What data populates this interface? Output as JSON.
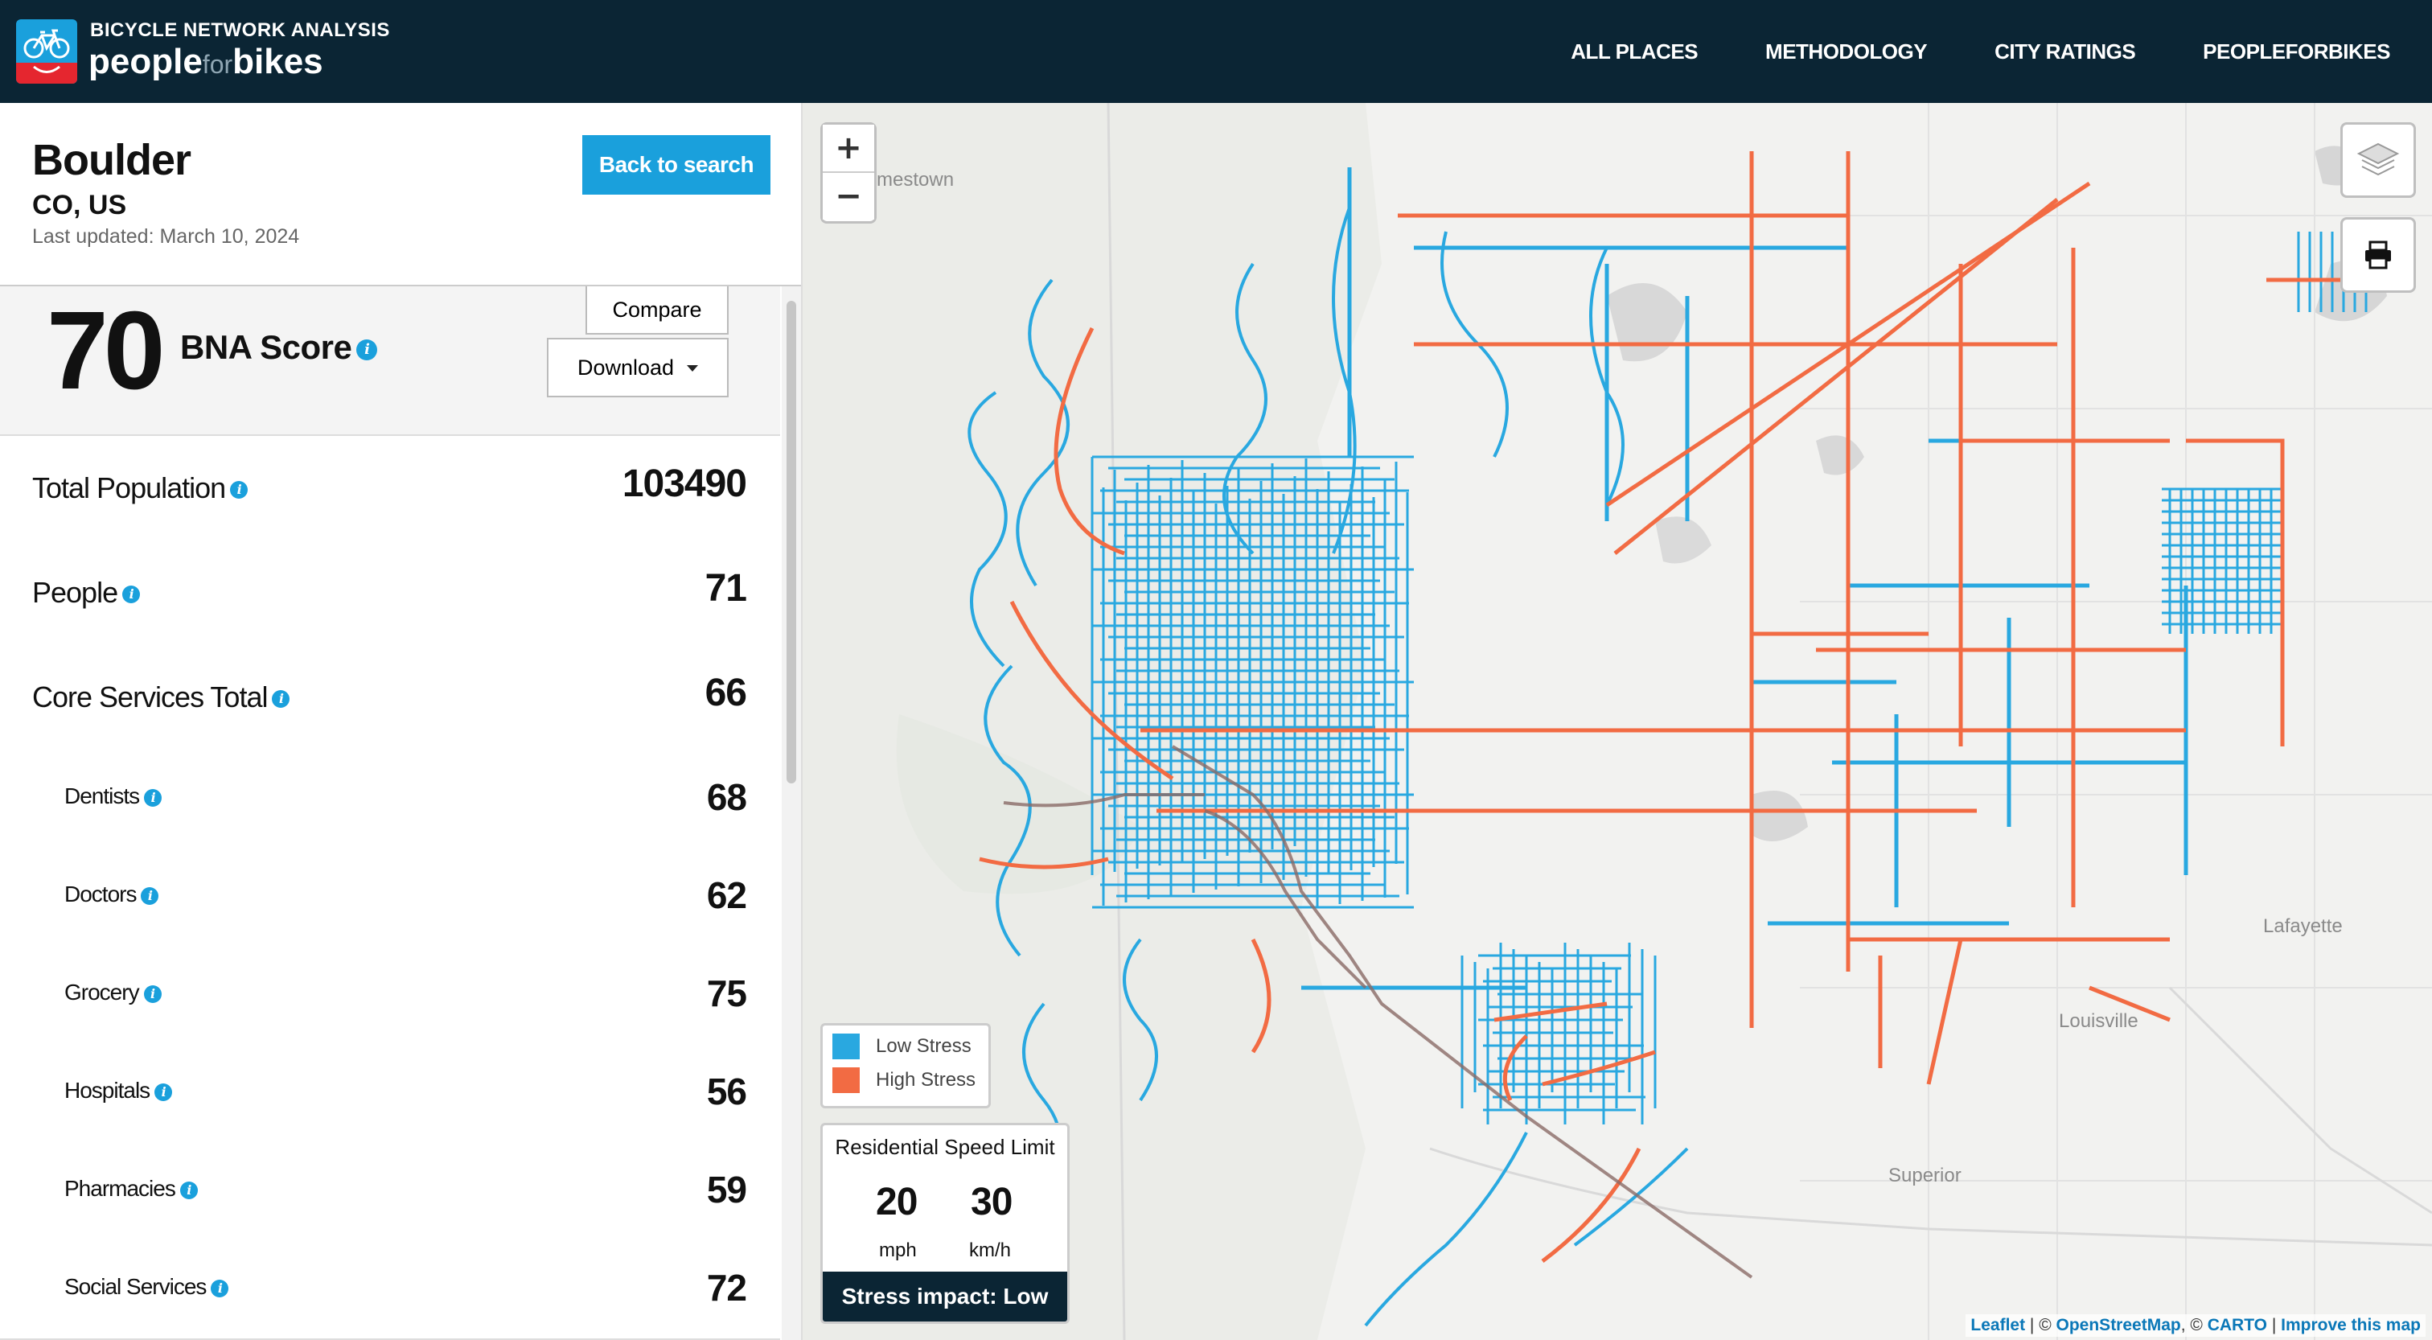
{
  "header": {
    "brand_top": "BICYCLE NETWORK ANALYSIS",
    "brand_people": "people",
    "brand_for": "for",
    "brand_bikes": "bikes",
    "nav": [
      "ALL PLACES",
      "METHODOLOGY",
      "CITY RATINGS",
      "PEOPLEFORBIKES"
    ]
  },
  "city": {
    "name": "Boulder",
    "region": "CO, US",
    "updated_label": "Last updated:",
    "updated_date": "March 10, 2024",
    "back_button": "Back to search"
  },
  "score": {
    "value": "70",
    "label": "BNA Score",
    "compare": "Compare",
    "download": "Download"
  },
  "metrics": [
    {
      "label": "Total Population",
      "value": "103490",
      "sub": false
    },
    {
      "label": "People",
      "value": "71",
      "sub": false
    },
    {
      "label": "Core Services Total",
      "value": "66",
      "sub": false
    },
    {
      "label": "Dentists",
      "value": "68",
      "sub": true
    },
    {
      "label": "Doctors",
      "value": "62",
      "sub": true
    },
    {
      "label": "Grocery",
      "value": "75",
      "sub": true
    },
    {
      "label": "Hospitals",
      "value": "56",
      "sub": true
    },
    {
      "label": "Pharmacies",
      "value": "59",
      "sub": true
    },
    {
      "label": "Social Services",
      "value": "72",
      "sub": true
    }
  ],
  "map": {
    "zoom_in": "+",
    "zoom_out": "−",
    "legend": {
      "low": "Low Stress",
      "high": "High Stress",
      "low_color": "#29a8e0",
      "high_color": "#f26b43"
    },
    "speed": {
      "title": "Residential Speed Limit",
      "mph": "20",
      "mph_unit": "mph",
      "kmh": "30",
      "kmh_unit": "km/h",
      "impact": "Stress impact: Low"
    },
    "places": [
      "mestown",
      "Lafayette",
      "Louisville",
      "Superior"
    ],
    "attribution": {
      "leaflet": "Leaflet",
      "osm": "OpenStreetMap",
      "carto": "CARTO",
      "improve": "Improve this map",
      "sep1": " | © ",
      "sep2": ", © ",
      "sep3": " | "
    },
    "icons": [
      "layers-icon",
      "print-icon"
    ]
  }
}
